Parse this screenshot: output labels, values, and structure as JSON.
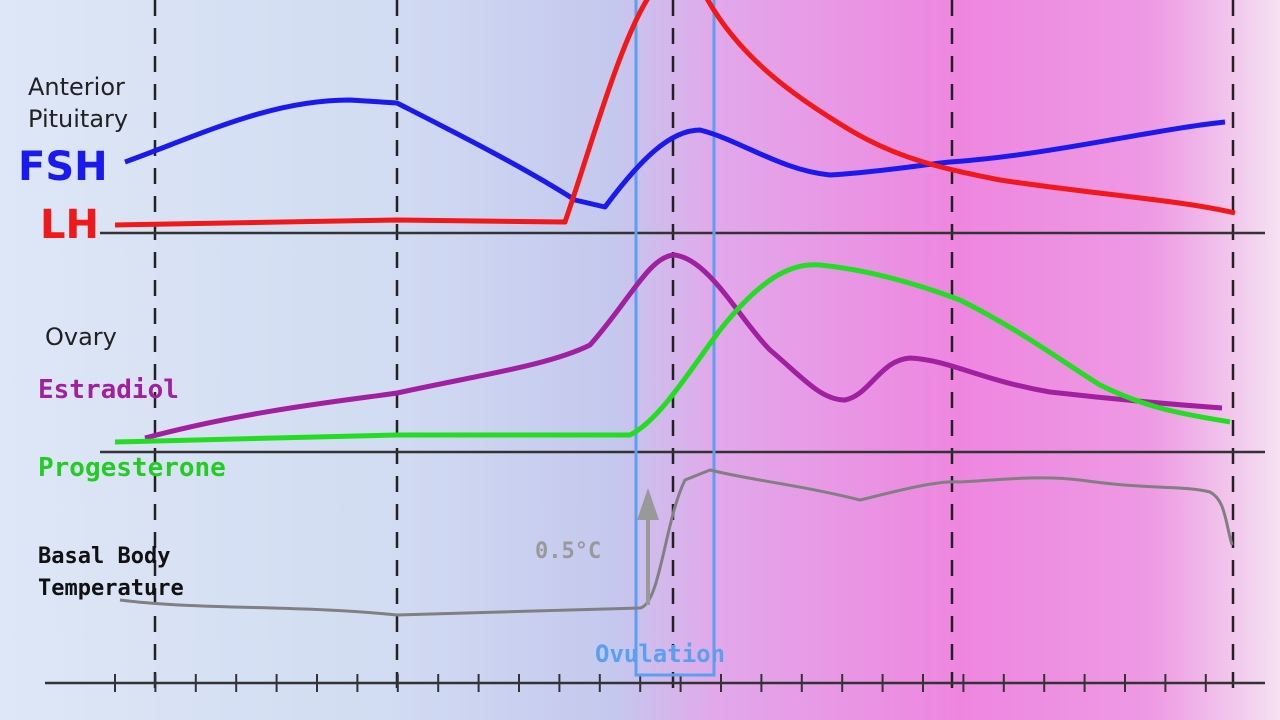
{
  "labels": {
    "pituitary": "Anterior Pituitary",
    "fsh": "FSH",
    "lh": "LH",
    "ovary": "Ovary",
    "estradiol": "Estradiol",
    "progesterone": "Progesterone",
    "bbt": "Basal Body Temperature",
    "rise": "0.5°C",
    "ovulation": "Ovulation"
  }
}
